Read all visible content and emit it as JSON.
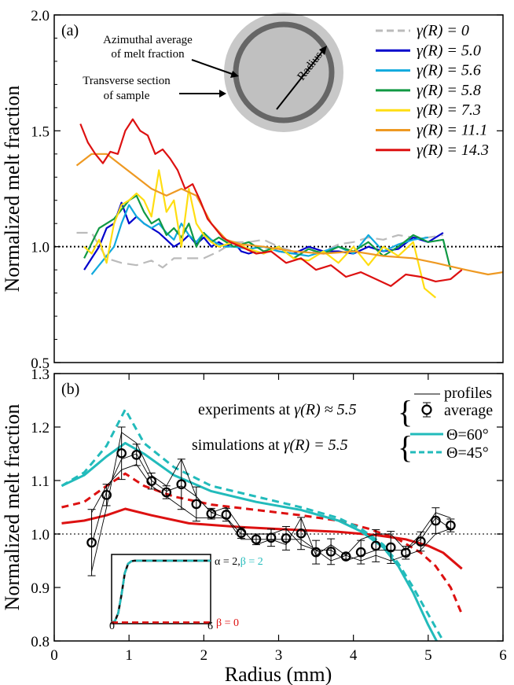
{
  "chart_data": [
    {
      "panel": "(a)",
      "type": "line",
      "xlabel": "",
      "ylabel": "Normalized melt fraction",
      "xlim": [
        0,
        6
      ],
      "ylim": [
        0.5,
        2.0
      ],
      "yticks": [
        "0.5",
        "1.0",
        "1.5",
        "2.0"
      ],
      "reference_line": 1.0,
      "legend_position": "top-right",
      "annotations": {
        "azimuthal": [
          "Azimuthal average",
          "of melt fraction"
        ],
        "transverse": [
          "Transverse section",
          "of sample"
        ],
        "radius": "Radius"
      },
      "series": [
        {
          "name": "γ(R) = 0",
          "color": "#bbbbbb",
          "dashed": true,
          "x": [
            0.3,
            0.5,
            0.7,
            0.9,
            1.1,
            1.3,
            1.45,
            1.6,
            1.8,
            2.0,
            2.2,
            2.4,
            2.6,
            2.8,
            3.0,
            3.2,
            3.4,
            3.6,
            3.8,
            4.0,
            4.2,
            4.4,
            4.6,
            4.8,
            5.0,
            5.2
          ],
          "y": [
            1.06,
            1.06,
            0.95,
            0.93,
            0.92,
            0.94,
            0.91,
            0.95,
            0.95,
            0.95,
            0.98,
            1.02,
            1.02,
            1.03,
            1.0,
            0.98,
            0.98,
            0.98,
            1.01,
            1.02,
            1.04,
            1.03,
            1.05,
            1.04,
            1.04,
            1.05
          ]
        },
        {
          "name": "γ(R) = 5.0",
          "color": "#0000cc",
          "dashed": false,
          "x": [
            0.4,
            0.5,
            0.6,
            0.7,
            0.8,
            0.9,
            1.0,
            1.1,
            1.2,
            1.3,
            1.4,
            1.5,
            1.6,
            1.7,
            1.8,
            1.9,
            2.0,
            2.1,
            2.2,
            2.3,
            2.4,
            2.5,
            2.6,
            2.7,
            2.8,
            2.9,
            3.0,
            3.2,
            3.4,
            3.6,
            3.8,
            4.0,
            4.2,
            4.4,
            4.6,
            4.8,
            5.0,
            5.2
          ],
          "y": [
            0.9,
            0.95,
            1.0,
            1.08,
            1.1,
            1.19,
            1.1,
            1.13,
            1.1,
            1.08,
            1.06,
            1.03,
            1.0,
            1.02,
            1.05,
            1.01,
            1.04,
            1.0,
            1.02,
            1.0,
            1.02,
            0.98,
            0.97,
            0.98,
            0.97,
            0.99,
            0.98,
            0.97,
            1.0,
            0.98,
            0.98,
            0.97,
            1.0,
            0.98,
            0.99,
            1.04,
            1.02,
            1.06
          ]
        },
        {
          "name": "γ(R) = 5.6",
          "color": "#11aadd",
          "dashed": false,
          "x": [
            0.5,
            0.6,
            0.7,
            0.8,
            0.9,
            1.0,
            1.1,
            1.2,
            1.3,
            1.4,
            1.5,
            1.6,
            1.7,
            1.8,
            1.9,
            2.0,
            2.1,
            2.2,
            2.3,
            2.4,
            2.6,
            2.8,
            3.0,
            3.2,
            3.4,
            3.6,
            3.8,
            4.0,
            4.2,
            4.4,
            4.6,
            4.8,
            5.0
          ],
          "y": [
            0.88,
            0.92,
            0.96,
            1.0,
            1.1,
            1.18,
            1.13,
            1.1,
            1.08,
            1.1,
            1.06,
            1.03,
            1.1,
            1.05,
            1.02,
            1.06,
            1.03,
            1.01,
            1.0,
            1.0,
            0.99,
            1.0,
            0.98,
            0.97,
            0.96,
            0.98,
            1.0,
            0.97,
            1.05,
            0.98,
            1.01,
            1.03,
            1.04
          ]
        },
        {
          "name": "γ(R) = 5.8",
          "color": "#119944",
          "dashed": false,
          "x": [
            0.4,
            0.6,
            0.8,
            1.0,
            1.1,
            1.2,
            1.3,
            1.4,
            1.5,
            1.6,
            1.7,
            1.8,
            1.9,
            2.0,
            2.1,
            2.2,
            2.4,
            2.6,
            2.8,
            3.0,
            3.2,
            3.4,
            3.6,
            3.8,
            4.0,
            4.2,
            4.4,
            4.6,
            4.8,
            5.0,
            5.2,
            5.3
          ],
          "y": [
            0.95,
            1.08,
            1.12,
            1.2,
            1.22,
            1.15,
            1.1,
            1.12,
            1.05,
            1.08,
            1.04,
            1.1,
            1.0,
            1.06,
            1.02,
            1.04,
            1.0,
            1.02,
            0.98,
            1.0,
            0.95,
            0.99,
            0.97,
            1.0,
            0.98,
            1.02,
            0.96,
            1.0,
            1.05,
            1.02,
            1.03,
            0.9
          ]
        },
        {
          "name": "γ(R) = 7.3",
          "color": "#ffdd11",
          "dashed": false,
          "x": [
            0.4,
            0.5,
            0.6,
            0.7,
            0.8,
            0.9,
            1.0,
            1.1,
            1.2,
            1.3,
            1.4,
            1.5,
            1.6,
            1.7,
            1.8,
            1.9,
            2.0,
            2.1,
            2.2,
            2.4,
            2.6,
            2.8,
            3.0,
            3.2,
            3.4,
            3.6,
            3.8,
            4.0,
            4.2,
            4.4,
            4.6,
            4.8,
            4.95,
            5.1
          ],
          "y": [
            1.0,
            0.97,
            1.03,
            0.93,
            1.1,
            1.18,
            1.2,
            1.23,
            1.2,
            1.13,
            1.33,
            1.15,
            1.2,
            1.0,
            1.25,
            1.1,
            1.05,
            1.02,
            1.0,
            1.02,
            0.99,
            0.97,
            1.0,
            0.95,
            0.94,
            0.98,
            0.93,
            1.0,
            0.92,
            1.0,
            0.96,
            1.02,
            0.82,
            0.78
          ]
        },
        {
          "name": "γ(R) = 11.1",
          "color": "#ee9922",
          "dashed": false,
          "x": [
            0.3,
            0.5,
            0.7,
            0.9,
            1.1,
            1.3,
            1.5,
            1.7,
            1.9,
            2.1,
            2.3,
            2.5,
            2.8,
            3.2,
            3.6,
            4.0,
            4.4,
            4.8,
            5.1,
            5.5,
            5.8,
            6.0
          ],
          "y": [
            1.35,
            1.4,
            1.4,
            1.35,
            1.3,
            1.25,
            1.22,
            1.25,
            1.22,
            1.1,
            1.03,
            1.01,
            1.0,
            0.98,
            0.97,
            0.98,
            0.96,
            0.95,
            0.93,
            0.9,
            0.88,
            0.89
          ]
        },
        {
          "name": "γ(R) = 14.3",
          "color": "#dd1111",
          "dashed": false,
          "x": [
            0.35,
            0.45,
            0.55,
            0.65,
            0.75,
            0.85,
            0.95,
            1.05,
            1.15,
            1.25,
            1.35,
            1.45,
            1.55,
            1.65,
            1.75,
            1.85,
            1.95,
            2.05,
            2.15,
            2.25,
            2.35,
            2.5,
            2.7,
            2.9,
            3.1,
            3.3,
            3.5,
            3.7,
            3.9,
            4.1,
            4.3,
            4.5,
            4.7,
            4.9,
            5.1,
            5.3,
            5.45
          ],
          "y": [
            1.53,
            1.45,
            1.4,
            1.36,
            1.41,
            1.4,
            1.5,
            1.55,
            1.5,
            1.48,
            1.4,
            1.42,
            1.38,
            1.33,
            1.25,
            1.27,
            1.2,
            1.12,
            1.08,
            1.04,
            1.02,
            1.0,
            0.97,
            0.98,
            0.93,
            0.95,
            0.9,
            0.92,
            0.87,
            0.89,
            0.86,
            0.83,
            0.88,
            0.87,
            0.85,
            0.86,
            0.9
          ]
        }
      ]
    },
    {
      "panel": "(b)",
      "type": "line",
      "xlabel": "Radius (mm)",
      "ylabel": "Normalized melt fraction",
      "xlim": [
        0,
        6
      ],
      "ylim": [
        0.8,
        1.3
      ],
      "xticks": [
        "0",
        "1",
        "2",
        "3",
        "4",
        "5",
        "6"
      ],
      "yticks": [
        "0.8",
        "0.9",
        "1.0",
        "1.1",
        "1.2",
        "1.3"
      ],
      "reference_line": 1.0,
      "legend_position": "top-right",
      "legend": {
        "exp_label": "experiments at",
        "exp_gamma": "γ(R) ≈ 5.5",
        "profiles_label": "profiles",
        "average_label": "average",
        "sim_label": "simulations at",
        "sim_gamma": "γ(R) = 5.5",
        "theta60": "Θ=60°",
        "theta45": "Θ=45°"
      },
      "average": {
        "x": [
          0.5,
          0.7,
          0.9,
          1.1,
          1.3,
          1.5,
          1.7,
          1.9,
          2.1,
          2.3,
          2.5,
          2.7,
          2.9,
          3.1,
          3.3,
          3.5,
          3.7,
          3.9,
          4.1,
          4.3,
          4.5,
          4.7,
          4.9,
          5.1,
          5.3
        ],
        "y": [
          0.984,
          1.073,
          1.151,
          1.148,
          1.099,
          1.078,
          1.093,
          1.056,
          1.038,
          1.036,
          1.002,
          0.99,
          0.993,
          0.992,
          1.001,
          0.966,
          0.967,
          0.958,
          0.966,
          0.978,
          0.975,
          0.965,
          0.986,
          1.025,
          1.016
        ],
        "err": [
          0.062,
          0.02,
          0.049,
          0.02,
          0.015,
          0.012,
          0.047,
          0.032,
          0.01,
          0.012,
          0.01,
          0.01,
          0.016,
          0.022,
          0.03,
          0.022,
          0.024,
          0.005,
          0.022,
          0.03,
          0.03,
          0.012,
          0.018,
          0.024,
          0.012
        ]
      },
      "profiles": [
        {
          "x": [
            0.5,
            0.7,
            0.9,
            1.1,
            1.3,
            1.5,
            1.7,
            1.9,
            2.1,
            2.3,
            2.5,
            2.7,
            2.9,
            3.1,
            3.3,
            3.5,
            3.7,
            3.9,
            4.1,
            4.3,
            4.5,
            4.7,
            4.9,
            5.1,
            5.3
          ],
          "y": [
            0.93,
            1.05,
            1.19,
            1.17,
            1.11,
            1.09,
            1.14,
            1.07,
            1.04,
            1.05,
            1.01,
            0.98,
            0.99,
            0.98,
            1.03,
            0.96,
            0.98,
            0.96,
            0.99,
            1.0,
            1.0,
            0.97,
            1.0,
            1.04,
            1.03
          ]
        },
        {
          "x": [
            0.5,
            0.7,
            0.9,
            1.1,
            1.3,
            1.5,
            1.7,
            1.9,
            2.1,
            2.3,
            2.5,
            2.7,
            2.9,
            3.1,
            3.3,
            3.5,
            3.7,
            3.9,
            4.1,
            4.3,
            4.5,
            4.7,
            4.9,
            5.1,
            5.3
          ],
          "y": [
            1.04,
            1.09,
            1.12,
            1.13,
            1.09,
            1.07,
            1.05,
            1.03,
            1.03,
            1.03,
            1.0,
            1.0,
            1.0,
            1.01,
            0.98,
            0.97,
            0.95,
            0.96,
            0.95,
            0.96,
            0.95,
            0.96,
            0.97,
            1.0,
            1.01
          ]
        },
        {
          "x": [
            0.5,
            0.7,
            0.9,
            1.1,
            1.3,
            1.5,
            1.7,
            1.9,
            2.1,
            2.3,
            2.5,
            2.7,
            2.9,
            3.1,
            3.3,
            3.5,
            3.7,
            3.9,
            4.1,
            4.3,
            4.5,
            4.7,
            4.9,
            5.1,
            5.3
          ],
          "y": [
            0.98,
            1.08,
            1.14,
            1.15,
            1.1,
            1.08,
            1.09,
            1.07,
            1.04,
            1.03,
            0.99,
            0.99,
            0.99,
            0.99,
            0.99,
            0.97,
            0.97,
            0.95,
            0.96,
            0.97,
            0.97,
            0.97,
            0.99,
            1.03,
            1.01
          ]
        }
      ],
      "simulations": [
        {
          "name": "Θ=60°",
          "color": "#dd1111",
          "dashed": false,
          "x": [
            0.1,
            0.4,
            0.7,
            0.95,
            1.3,
            1.8,
            2.5,
            3.2,
            3.8,
            4.3,
            4.7,
            5.0,
            5.2,
            5.45
          ],
          "y": [
            1.02,
            1.025,
            1.035,
            1.047,
            1.035,
            1.02,
            1.013,
            1.008,
            1.004,
            0.998,
            0.99,
            0.978,
            0.965,
            0.935
          ]
        },
        {
          "name": "Θ=45°",
          "color": "#dd1111",
          "dashed": true,
          "x": [
            0.1,
            0.4,
            0.7,
            0.95,
            1.2,
            1.6,
            2.1,
            2.7,
            3.3,
            3.8,
            4.2,
            4.6,
            4.9,
            5.1,
            5.3,
            5.45
          ],
          "y": [
            1.05,
            1.06,
            1.09,
            1.113,
            1.09,
            1.07,
            1.055,
            1.045,
            1.035,
            1.025,
            1.01,
            0.99,
            0.965,
            0.94,
            0.9,
            0.85
          ]
        },
        {
          "name": "Θ=60°",
          "color": "#22bbbb",
          "dashed": false,
          "x": [
            0.1,
            0.4,
            0.7,
            0.95,
            1.2,
            1.6,
            2.1,
            2.7,
            3.3,
            3.8,
            4.1,
            4.4,
            4.6,
            4.8,
            5.0,
            5.15
          ],
          "y": [
            1.09,
            1.11,
            1.145,
            1.17,
            1.15,
            1.11,
            1.08,
            1.06,
            1.045,
            1.025,
            1.005,
            0.975,
            0.94,
            0.89,
            0.83,
            0.79
          ]
        },
        {
          "name": "Θ=45°",
          "color": "#22bbbb",
          "dashed": true,
          "x": [
            0.1,
            0.4,
            0.7,
            0.95,
            1.2,
            1.6,
            2.1,
            2.7,
            3.3,
            3.8,
            4.1,
            4.4,
            4.6,
            4.8,
            5.0,
            5.2
          ],
          "y": [
            1.09,
            1.115,
            1.165,
            1.233,
            1.17,
            1.125,
            1.09,
            1.07,
            1.05,
            1.03,
            1.01,
            0.98,
            0.945,
            0.9,
            0.85,
            0.8
          ]
        }
      ],
      "inset": {
        "x_labels": [
          "0",
          "6"
        ],
        "label_alpha": "α = 2,",
        "label_beta2": "β = 2",
        "label_beta0": "β = 0",
        "curves": [
          {
            "name": "α = 2, β = 2",
            "color": "#111111",
            "dashed": false,
            "x": [
              0,
              0.2,
              0.4,
              0.6,
              0.8,
              1.0,
              1.2,
              1.4,
              1.8,
              6
            ],
            "y": [
              0.0,
              0.02,
              0.15,
              0.45,
              0.8,
              0.95,
              0.99,
              1.0,
              1.0,
              1.0
            ]
          },
          {
            "name": "β = 2",
            "color": "#22bbbb",
            "dashed": true,
            "x": [
              0,
              0.2,
              0.4,
              0.6,
              0.8,
              1.0,
              1.2,
              1.4,
              1.8,
              6
            ],
            "y": [
              0.0,
              0.02,
              0.15,
              0.45,
              0.8,
              0.95,
              0.99,
              1.0,
              1.0,
              1.0
            ]
          },
          {
            "name": "β = 0",
            "color": "#dd1111",
            "dashed": true,
            "x": [
              0,
              6
            ],
            "y": [
              0.0,
              0.0
            ]
          }
        ]
      }
    }
  ]
}
